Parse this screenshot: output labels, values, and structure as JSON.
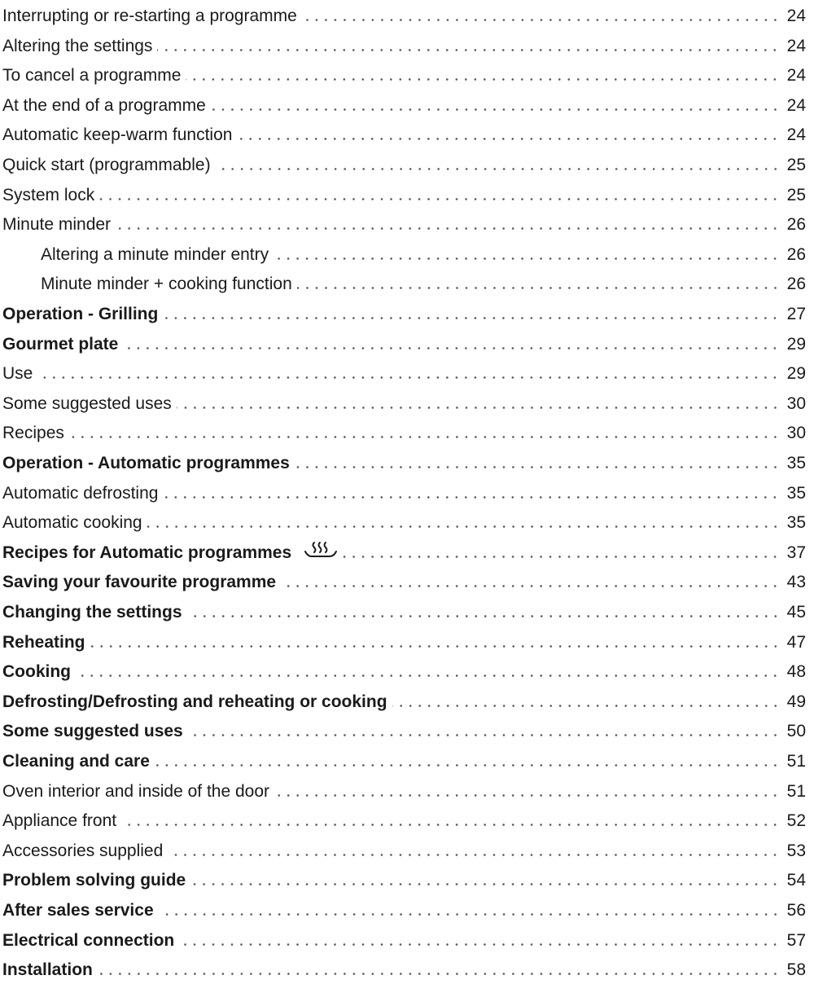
{
  "toc": {
    "entries": [
      {
        "title": "Interrupting or re-starting a programme",
        "page": "24",
        "level": 1,
        "bold": false
      },
      {
        "title": "Altering the settings",
        "page": "24",
        "level": 1,
        "bold": false
      },
      {
        "title": "To cancel a programme",
        "page": "24",
        "level": 1,
        "bold": false
      },
      {
        "title": "At the end of a programme",
        "page": "24",
        "level": 1,
        "bold": false
      },
      {
        "title": "Automatic keep-warm function",
        "page": "24",
        "level": 1,
        "bold": false
      },
      {
        "title": "Quick start (programmable)",
        "page": "25",
        "level": 1,
        "bold": false
      },
      {
        "title": "System lock",
        "page": "25",
        "level": 1,
        "bold": false
      },
      {
        "title": "Minute minder",
        "page": "26",
        "level": 1,
        "bold": false
      },
      {
        "title": "Altering a minute minder entry",
        "page": "26",
        "level": 2,
        "bold": false
      },
      {
        "title": "Minute minder + cooking function",
        "page": "26",
        "level": 2,
        "bold": false
      },
      {
        "title": "Operation - Grilling",
        "page": "27",
        "level": 1,
        "bold": true
      },
      {
        "title": "Gourmet plate",
        "page": "29",
        "level": 1,
        "bold": true
      },
      {
        "title": "Use",
        "page": "29",
        "level": 1,
        "bold": false
      },
      {
        "title": "Some suggested uses",
        "page": "30",
        "level": 1,
        "bold": false
      },
      {
        "title": "Recipes",
        "page": "30",
        "level": 1,
        "bold": false
      },
      {
        "title": "Operation - Automatic programmes",
        "page": "35",
        "level": 1,
        "bold": true
      },
      {
        "title": "Automatic defrosting",
        "page": "35",
        "level": 1,
        "bold": false
      },
      {
        "title": "Automatic cooking",
        "page": "35",
        "level": 1,
        "bold": false
      },
      {
        "title": "Recipes for Automatic programmes",
        "page": "37",
        "level": 1,
        "bold": true,
        "icon": "steam-icon"
      },
      {
        "title": "Saving your favourite programme",
        "page": "43",
        "level": 1,
        "bold": true
      },
      {
        "title": "Changing the settings",
        "page": "45",
        "level": 1,
        "bold": true
      },
      {
        "title": "Reheating",
        "page": "47",
        "level": 1,
        "bold": true
      },
      {
        "title": "Cooking",
        "page": "48",
        "level": 1,
        "bold": true
      },
      {
        "title": "Defrosting/Defrosting and reheating or cooking",
        "page": "49",
        "level": 1,
        "bold": true
      },
      {
        "title": "Some suggested uses",
        "page": "50",
        "level": 1,
        "bold": true
      },
      {
        "title": "Cleaning and care",
        "page": "51",
        "level": 1,
        "bold": true
      },
      {
        "title": "Oven interior and inside of the door",
        "page": "51",
        "level": 1,
        "bold": false
      },
      {
        "title": "Appliance front",
        "page": "52",
        "level": 1,
        "bold": false
      },
      {
        "title": "Accessories supplied",
        "page": "53",
        "level": 1,
        "bold": false
      },
      {
        "title": "Problem solving guide",
        "page": "54",
        "level": 1,
        "bold": true
      },
      {
        "title": "After sales service",
        "page": "56",
        "level": 1,
        "bold": true
      },
      {
        "title": "Electrical connection",
        "page": "57",
        "level": 1,
        "bold": true
      },
      {
        "title": "Installation",
        "page": "58",
        "level": 1,
        "bold": true
      }
    ]
  }
}
